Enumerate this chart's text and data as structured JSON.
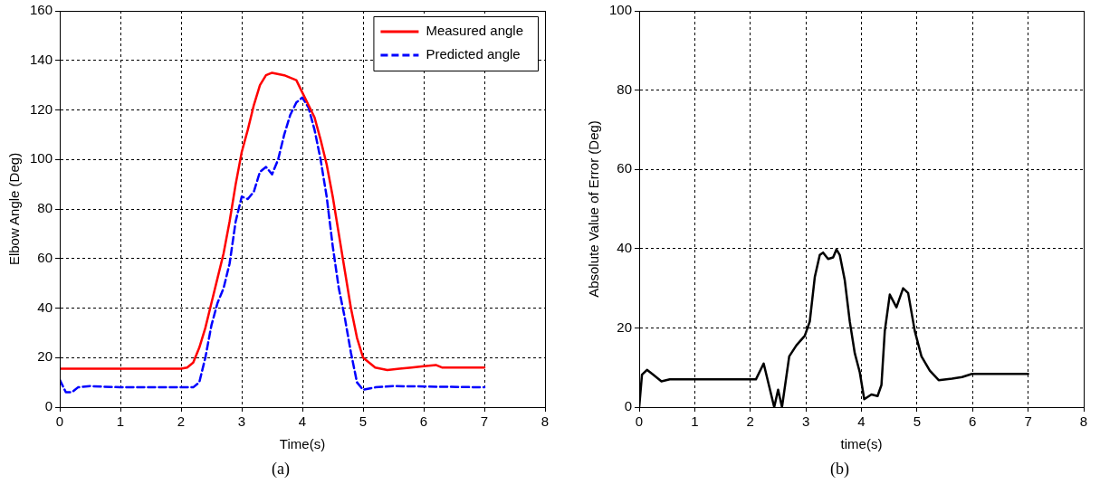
{
  "chart_data": [
    {
      "type": "line",
      "xlabel": "Time(s)",
      "ylabel": "Elbow Angle (Deg)",
      "annotations": [
        "(a)"
      ],
      "xlim": [
        0,
        8
      ],
      "xticks": [
        0,
        1,
        2,
        3,
        4,
        5,
        6,
        7,
        8
      ],
      "ylim": [
        0,
        160
      ],
      "yticks": [
        0,
        20,
        40,
        60,
        80,
        100,
        120,
        140,
        160
      ],
      "grid": true,
      "legend": "top right",
      "marker": "none",
      "series": [
        {
          "name": "Measured angle",
          "color": "#ff0000",
          "line_style": "solid",
          "x": [
            0,
            1,
            2,
            2.1,
            2.2,
            2.3,
            2.4,
            2.5,
            2.6,
            2.7,
            2.8,
            2.9,
            3.0,
            3.1,
            3.2,
            3.3,
            3.4,
            3.5,
            3.7,
            3.9,
            4.0,
            4.1,
            4.2,
            4.3,
            4.4,
            4.5,
            4.6,
            4.7,
            4.8,
            4.9,
            5.0,
            5.2,
            5.4,
            5.6,
            5.8,
            6.0,
            6.2,
            6.3,
            7
          ],
          "values": [
            15.5,
            15.5,
            15.5,
            16,
            18,
            24,
            32,
            42,
            52,
            62,
            75,
            90,
            103,
            112,
            122,
            130,
            134,
            135,
            134,
            132,
            127,
            122,
            117,
            108,
            98,
            85,
            70,
            55,
            40,
            28,
            20,
            16,
            15,
            15.5,
            16,
            16.5,
            17,
            16,
            16
          ]
        },
        {
          "name": "Predicted angle",
          "color": "#0000ff",
          "line_style": "dashed",
          "x": [
            0,
            0.1,
            0.2,
            0.3,
            0.5,
            1,
            2.2,
            2.3,
            2.4,
            2.5,
            2.6,
            2.7,
            2.8,
            2.9,
            3.0,
            3.1,
            3.2,
            3.3,
            3.4,
            3.5,
            3.6,
            3.7,
            3.8,
            3.9,
            4.0,
            4.1,
            4.2,
            4.3,
            4.4,
            4.5,
            4.6,
            4.7,
            4.8,
            4.9,
            5.0,
            5.2,
            5.5,
            7
          ],
          "values": [
            11,
            6,
            6,
            8,
            8.5,
            8,
            8,
            10,
            20,
            33,
            42,
            48,
            58,
            75,
            85,
            84,
            87,
            95,
            97,
            94,
            100,
            110,
            118,
            123,
            125,
            121,
            112,
            100,
            85,
            65,
            48,
            36,
            22,
            10,
            7,
            8,
            8.5,
            8
          ]
        }
      ]
    },
    {
      "type": "line",
      "xlabel": "time(s)",
      "ylabel": "Absolute Value of Error (Deg)",
      "annotations": [
        "(b)"
      ],
      "xlim": [
        0,
        8
      ],
      "xticks": [
        0,
        1,
        2,
        3,
        4,
        5,
        6,
        7,
        8
      ],
      "ylim": [
        0,
        100
      ],
      "yticks": [
        0,
        20,
        40,
        60,
        80,
        100
      ],
      "grid": true,
      "legend": false,
      "marker": "none",
      "series": [
        {
          "color": "#000000",
          "line_style": "solid",
          "x": [
            0,
            0.05,
            0.14,
            0.25,
            0.4,
            0.55,
            2.1,
            2.24,
            2.43,
            2.5,
            2.57,
            2.7,
            2.83,
            2.98,
            3.07,
            3.16,
            3.25,
            3.31,
            3.4,
            3.49,
            3.55,
            3.61,
            3.7,
            3.79,
            3.88,
            3.97,
            4.05,
            4.18,
            4.29,
            4.36,
            4.42,
            4.51,
            4.63,
            4.75,
            4.84,
            4.96,
            5.08,
            5.23,
            5.39,
            5.63,
            5.81,
            5.99,
            7
          ],
          "values": [
            0,
            8.2,
            9.4,
            8.2,
            6.5,
            7,
            7,
            11,
            0,
            4.4,
            0,
            12.8,
            15.6,
            18,
            21.6,
            32.8,
            38.4,
            39,
            37.4,
            37.8,
            39.8,
            38.4,
            32,
            21.6,
            13.6,
            8.8,
            2,
            3.2,
            2.8,
            5.6,
            19.2,
            28.4,
            25.2,
            30,
            28.8,
            19.2,
            12.8,
            9.2,
            6.8,
            7.2,
            7.6,
            8.4,
            8.4
          ]
        }
      ]
    }
  ]
}
